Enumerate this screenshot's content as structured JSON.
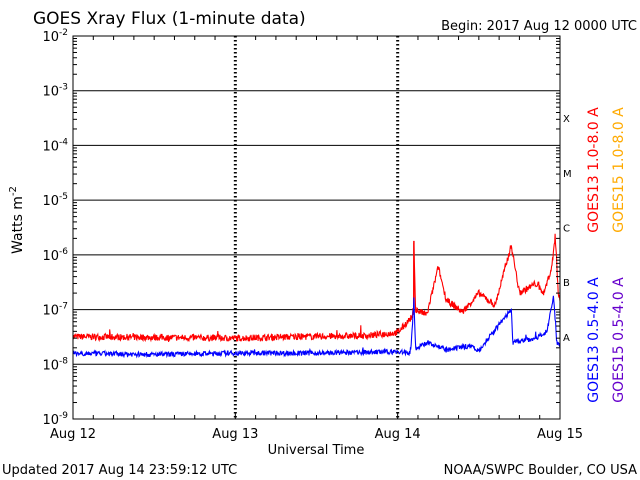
{
  "chart_data": {
    "type": "line",
    "title": "GOES Xray Flux (1-minute data)",
    "begin_label": "Begin:  2017 Aug 12 0000 UTC",
    "xlabel": "Universal Time",
    "ylabel_base": "Watts m",
    "ylabel_exp": "-2",
    "x_range_days": [
      0,
      3
    ],
    "x_ticks": [
      {
        "day": 0,
        "label": "Aug 12"
      },
      {
        "day": 1,
        "label": "Aug 13"
      },
      {
        "day": 2,
        "label": "Aug 14"
      },
      {
        "day": 3,
        "label": "Aug 15"
      }
    ],
    "y_range_log10": [
      -9,
      -2
    ],
    "y_ticks": [
      {
        "exp": -2,
        "base": "10",
        "sup": "-2"
      },
      {
        "exp": -3,
        "base": "10",
        "sup": "-3"
      },
      {
        "exp": -4,
        "base": "10",
        "sup": "-4"
      },
      {
        "exp": -5,
        "base": "10",
        "sup": "-5"
      },
      {
        "exp": -6,
        "base": "10",
        "sup": "-6"
      },
      {
        "exp": -7,
        "base": "10",
        "sup": "-7"
      },
      {
        "exp": -8,
        "base": "10",
        "sup": "-8"
      },
      {
        "exp": -9,
        "base": "10",
        "sup": "-9"
      }
    ],
    "flare_classes": [
      {
        "label": "X",
        "exp": -3.5
      },
      {
        "label": "M",
        "exp": -4.5
      },
      {
        "label": "C",
        "exp": -5.5
      },
      {
        "label": "B",
        "exp": -6.5
      },
      {
        "label": "A",
        "exp": -7.5
      }
    ],
    "series": [
      {
        "name": "GOES13 1.0-8.0 A",
        "color": "#ff0000",
        "noise": 0.06,
        "points": [
          [
            0,
            3.2e-08
          ],
          [
            0.5,
            3.1e-08
          ],
          [
            1.0,
            3e-08
          ],
          [
            1.4,
            3.2e-08
          ],
          [
            1.8,
            3.3e-08
          ],
          [
            2.0,
            3.8e-08
          ],
          [
            2.05,
            5.5e-08
          ],
          [
            2.1,
            8e-08
          ],
          [
            2.1,
            1.8e-06
          ],
          [
            2.11,
            1e-07
          ],
          [
            2.18,
            8e-08
          ],
          [
            2.25,
            6e-07
          ],
          [
            2.3,
            1.5e-07
          ],
          [
            2.4,
            9e-08
          ],
          [
            2.5,
            2e-07
          ],
          [
            2.6,
            1.2e-07
          ],
          [
            2.7,
            1.5e-06
          ],
          [
            2.75,
            2e-07
          ],
          [
            2.85,
            3e-07
          ],
          [
            2.9,
            2e-07
          ],
          [
            2.95,
            6e-07
          ],
          [
            2.97,
            2.3e-06
          ],
          [
            2.99,
            2e-07
          ],
          [
            3.0,
            1.5e-07
          ]
        ]
      },
      {
        "name": "GOES13 0.5-4.0 A",
        "color": "#0000ff",
        "noise": 0.045,
        "points": [
          [
            0,
            1.6e-08
          ],
          [
            0.5,
            1.5e-08
          ],
          [
            1.0,
            1.6e-08
          ],
          [
            1.5,
            1.6e-08
          ],
          [
            2.0,
            1.7e-08
          ],
          [
            2.08,
            1.6e-08
          ],
          [
            2.1,
            1.5e-07
          ],
          [
            2.11,
            2e-08
          ],
          [
            2.2,
            2.5e-08
          ],
          [
            2.3,
            1.8e-08
          ],
          [
            2.45,
            2.2e-08
          ],
          [
            2.5,
            1.8e-08
          ],
          [
            2.7,
            1e-07
          ],
          [
            2.71,
            2.5e-08
          ],
          [
            2.85,
            3e-08
          ],
          [
            2.92,
            4e-08
          ],
          [
            2.96,
            1.8e-07
          ],
          [
            2.98,
            2.5e-08
          ],
          [
            3.0,
            2e-08
          ]
        ]
      }
    ],
    "legend": [
      {
        "text": "GOES13 1.0-8.0 A",
        "color": "#ff0000"
      },
      {
        "text": "GOES15 1.0-8.0 A",
        "color": "#ffaa00"
      },
      {
        "text": "GOES13 0.5-4.0 A",
        "color": "#0000ff"
      },
      {
        "text": "GOES15 0.5-4.0 A",
        "color": "#6600cc"
      }
    ]
  },
  "footer": {
    "updated": "Updated 2017 Aug 14 23:59:12 UTC",
    "credit": "NOAA/SWPC Boulder, CO USA"
  }
}
